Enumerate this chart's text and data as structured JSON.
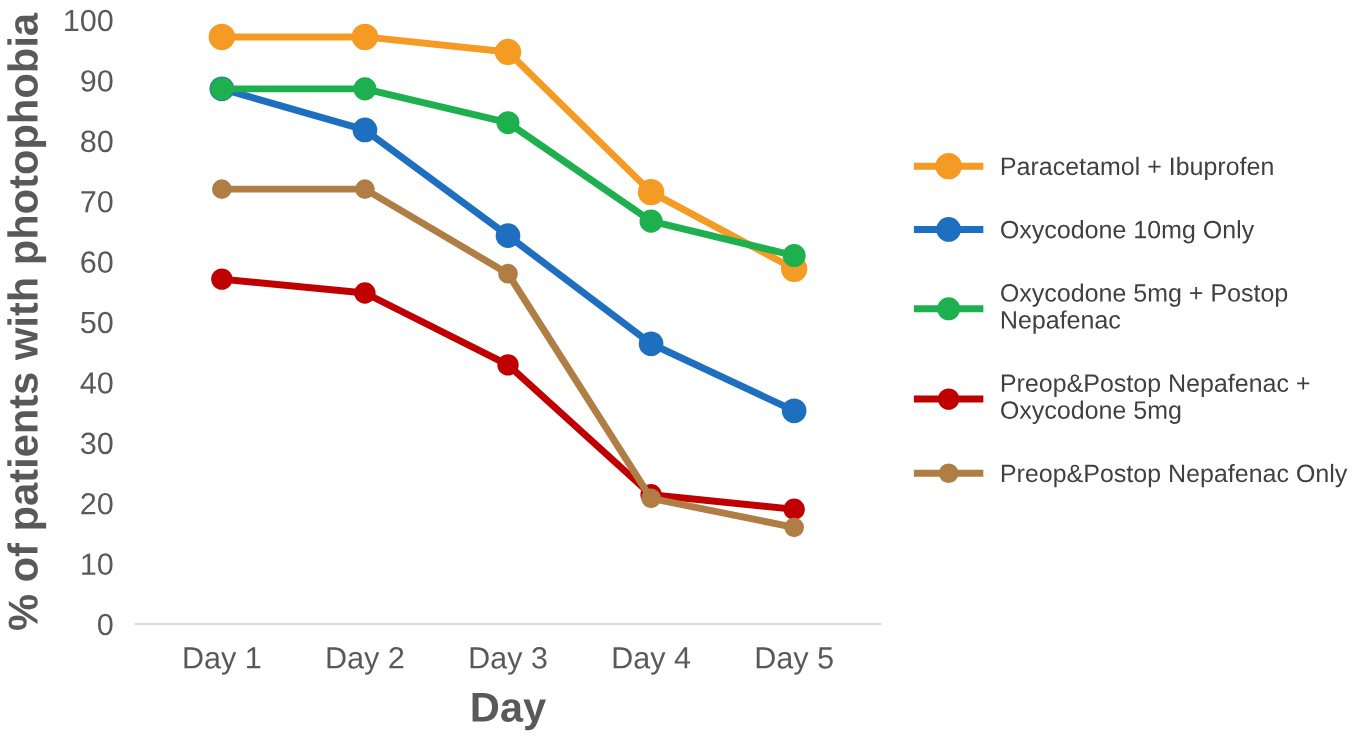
{
  "chart_data": {
    "type": "line",
    "xlabel": "Day",
    "ylabel": "% of patients with photophobia",
    "categories": [
      "Day 1",
      "Day 2",
      "Day 3",
      "Day 4",
      "Day 5"
    ],
    "series": [
      {
        "name": "Paracetamol + Ibuprofen",
        "color": "#f59a23",
        "values": [
          97.2,
          97.2,
          94.7,
          71.5,
          58.8
        ]
      },
      {
        "name": "Oxycodone 10mg Only",
        "color": "#1f6fc0",
        "values": [
          88.6,
          81.8,
          64.3,
          46.4,
          35.3
        ]
      },
      {
        "name": "Oxycodone 5mg + Postop\nNepafenac",
        "color": "#1eb04e",
        "values": [
          88.6,
          88.6,
          83.0,
          66.7,
          61.0
        ]
      },
      {
        "name": "Preop&Postop Nepafenac +\nOxycodone 5mg",
        "color": "#c00000",
        "values": [
          57.1,
          54.8,
          42.9,
          21.4,
          19.0
        ]
      },
      {
        "name": "Preop&Postop Nepafenac Only",
        "color": "#b07d45",
        "values": [
          72.0,
          72.0,
          58.0,
          20.8,
          16.0
        ]
      }
    ],
    "ylim": [
      0,
      100
    ],
    "yticks": [
      0,
      10,
      20,
      30,
      40,
      50,
      60,
      70,
      80,
      90,
      100
    ],
    "grid": false,
    "legend": "right",
    "marker": "circle",
    "line_style": "solid"
  }
}
